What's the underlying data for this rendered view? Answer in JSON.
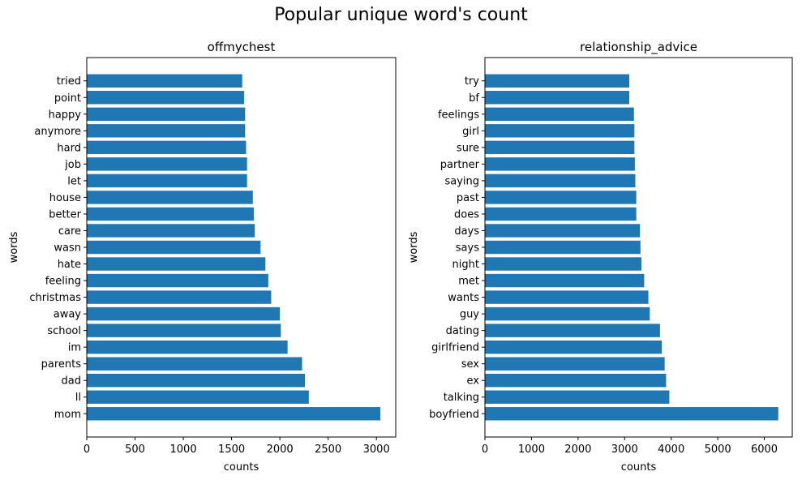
{
  "figure": {
    "title": "Popular unique word's count"
  },
  "chart_data": [
    {
      "type": "bar",
      "orientation": "horizontal",
      "title": "offmychest",
      "xlabel": "counts",
      "ylabel": "words",
      "xlim": [
        0,
        3200
      ],
      "xticks": [
        0,
        500,
        1000,
        1500,
        2000,
        2500,
        3000
      ],
      "bar_color": "#1f77b4",
      "categories": [
        "mom",
        "ll",
        "dad",
        "parents",
        "im",
        "school",
        "away",
        "christmas",
        "feeling",
        "hate",
        "wasn",
        "care",
        "better",
        "house",
        "let",
        "job",
        "hard",
        "anymore",
        "happy",
        "point",
        "tried"
      ],
      "values": [
        3040,
        2300,
        2260,
        2230,
        2080,
        2010,
        2000,
        1910,
        1880,
        1850,
        1800,
        1740,
        1730,
        1720,
        1660,
        1660,
        1650,
        1640,
        1640,
        1630,
        1610
      ]
    },
    {
      "type": "bar",
      "orientation": "horizontal",
      "title": "relationship_advice",
      "xlabel": "counts",
      "ylabel": "words",
      "xlim": [
        0,
        6600
      ],
      "xticks": [
        0,
        1000,
        2000,
        3000,
        4000,
        5000,
        6000
      ],
      "bar_color": "#1f77b4",
      "categories": [
        "boyfriend",
        "talking",
        "ex",
        "sex",
        "girlfriend",
        "dating",
        "guy",
        "wants",
        "met",
        "night",
        "says",
        "days",
        "does",
        "past",
        "saying",
        "partner",
        "sure",
        "girl",
        "feelings",
        "bf",
        "try"
      ],
      "values": [
        6300,
        3960,
        3890,
        3860,
        3800,
        3760,
        3540,
        3510,
        3420,
        3360,
        3340,
        3330,
        3250,
        3250,
        3230,
        3220,
        3210,
        3210,
        3200,
        3100,
        3100
      ]
    }
  ]
}
